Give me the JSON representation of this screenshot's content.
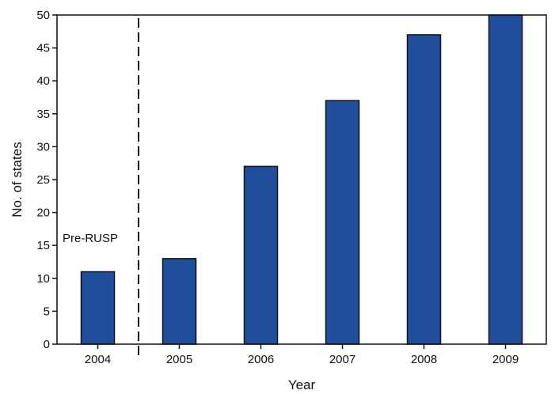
{
  "chart_data": {
    "type": "bar",
    "categories": [
      "2004",
      "2005",
      "2006",
      "2007",
      "2008",
      "2009"
    ],
    "values": [
      11,
      13,
      27,
      37,
      47,
      50
    ],
    "xlabel": "Year",
    "ylabel": "No. of states",
    "ylim": [
      0,
      50
    ],
    "yticks": [
      0,
      5,
      10,
      15,
      20,
      25,
      30,
      35,
      40,
      45,
      50
    ],
    "annotation": "Pre-RUSP",
    "divider_between": [
      "2004",
      "2005"
    ],
    "bar_color": "#1f4e9c",
    "bar_edge_color": "#111111",
    "grid": false,
    "legend": "none"
  }
}
